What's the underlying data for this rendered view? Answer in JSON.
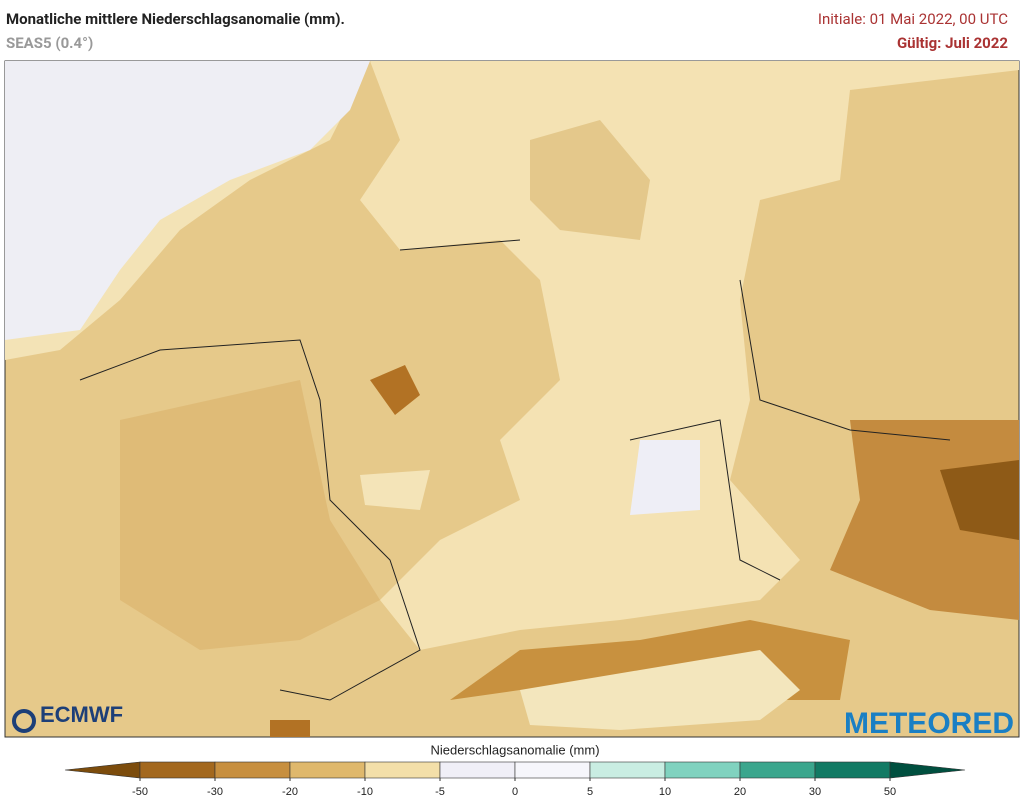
{
  "header": {
    "title": "Monatliche mittlere Niederschlagsanomalie (mm).",
    "subtitle": "SEAS5 (0.4°)",
    "initial": "Initiale: 01 Mai 2022, 00 UTC",
    "valid": "Gültig: Juli 2022"
  },
  "logos": {
    "left": "ECMWF",
    "right": "METEORED"
  },
  "colorbar": {
    "label": "Niederschlagsanomalie (mm)",
    "ticks": [
      -50,
      -30,
      -20,
      -10,
      -5,
      0,
      5,
      10,
      20,
      30,
      50
    ],
    "colors": [
      "#7c4c0c",
      "#a3681e",
      "#c78f3f",
      "#dfb86c",
      "#f3dfa9",
      "#f0eff7",
      "#f6f6fb",
      "#c9ede2",
      "#80d2bf",
      "#3ba68d",
      "#127a64",
      "#004f3f"
    ]
  }
}
